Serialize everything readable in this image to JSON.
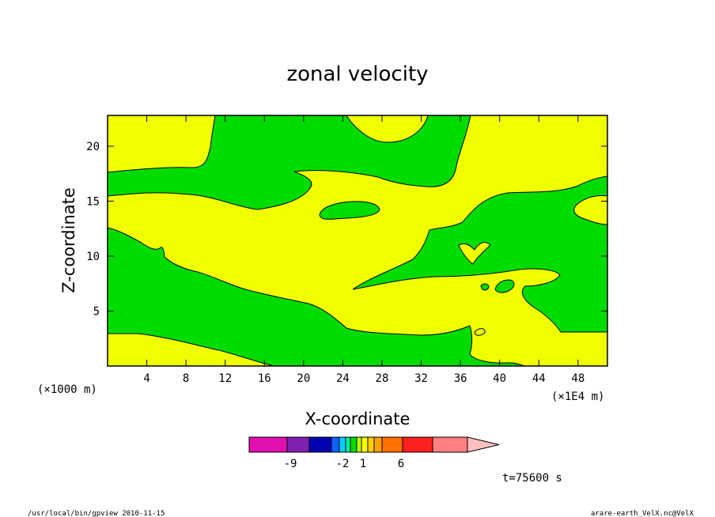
{
  "chart_data": {
    "type": "heatmap",
    "title": "zonal velocity",
    "xlabel": "X-coordinate",
    "ylabel": "Z-coordinate",
    "x_unit": "(×1000 m)",
    "x_unit_right": "(×1E4 m)",
    "xlim": [
      0,
      51
    ],
    "ylim": [
      0,
      22.8
    ],
    "x_ticks": [
      4,
      8,
      12,
      16,
      20,
      24,
      28,
      32,
      36,
      40,
      44,
      48
    ],
    "y_ticks": [
      5,
      10,
      15,
      20
    ],
    "fill_colors": {
      "positive": "#f0ff00",
      "negative": "#00dc00"
    },
    "colorbar": {
      "colors": [
        "#e010b0",
        "#8020b0",
        "#0000b0",
        "#1060ff",
        "#00d0ff",
        "#00f0a0",
        "#00dc00",
        "#c0ff00",
        "#f0ff00",
        "#ffd000",
        "#ffa000",
        "#ff7000",
        "#ff2020",
        "#ff8080",
        "#ffc0c0"
      ],
      "labels": [
        "-9",
        "-2",
        "1",
        "6"
      ]
    },
    "time_label": "t=75600 s",
    "grid": false,
    "legend": "colorbar-bottom"
  },
  "footer": {
    "left": "/usr/local/bin/gpview  2010-11-15",
    "right": "arare-earth_VelX.nc@VelX"
  }
}
